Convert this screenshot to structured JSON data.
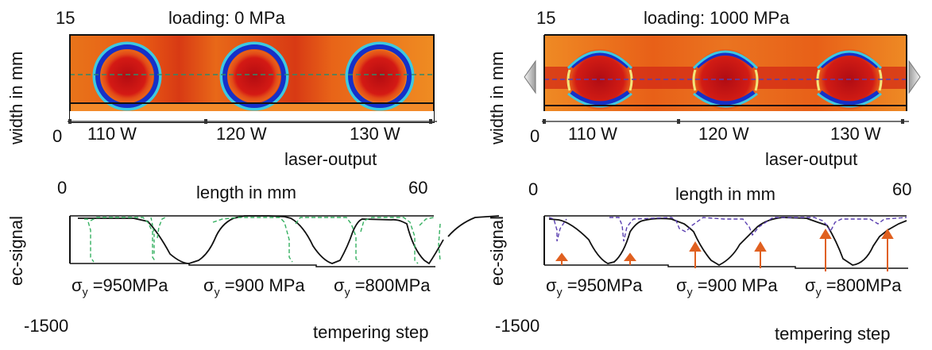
{
  "left": {
    "loading_label": "loading: 0 MPa",
    "width_max": "15",
    "width_min": "0",
    "width_axis_label": "width in mm",
    "laser_powers": [
      "110 W",
      "120 W",
      "130 W"
    ],
    "laser_axis_label": "laser-output",
    "length_min": "0",
    "length_max": "60",
    "length_axis_label": "length in mm",
    "signal_axis_label": "ec-signal",
    "signal_min": "-1500",
    "sigma_symbol": "σ",
    "sigma_sub": "y",
    "yield_values": [
      "=950MPa",
      "=900 MPa",
      "=800MPa"
    ],
    "tempering_label": "tempering step"
  },
  "right": {
    "loading_label": "loading: 1000 MPa",
    "width_max": "15",
    "width_min": "0",
    "width_axis_label": "width in mm",
    "laser_powers": [
      "110 W",
      "120 W",
      "130 W"
    ],
    "laser_axis_label": "laser-output",
    "length_min": "0",
    "length_max": "60",
    "length_axis_label": "length in mm",
    "signal_axis_label": "ec-signal",
    "signal_min": "-1500",
    "sigma_symbol": "σ",
    "sigma_sub": "y",
    "yield_values": [
      "=950MPa",
      "=900 MPa",
      "=800MPa"
    ],
    "tempering_label": "tempering step"
  },
  "colors": {
    "heat_bg": "#e85a14",
    "heat_core": "#c80f12",
    "ring": "#1530c8",
    "cyan": "#3ec9e0",
    "green_dashed": "#35b060",
    "purple_dashed": "#5a3fb0",
    "arrow": "#e06020"
  }
}
